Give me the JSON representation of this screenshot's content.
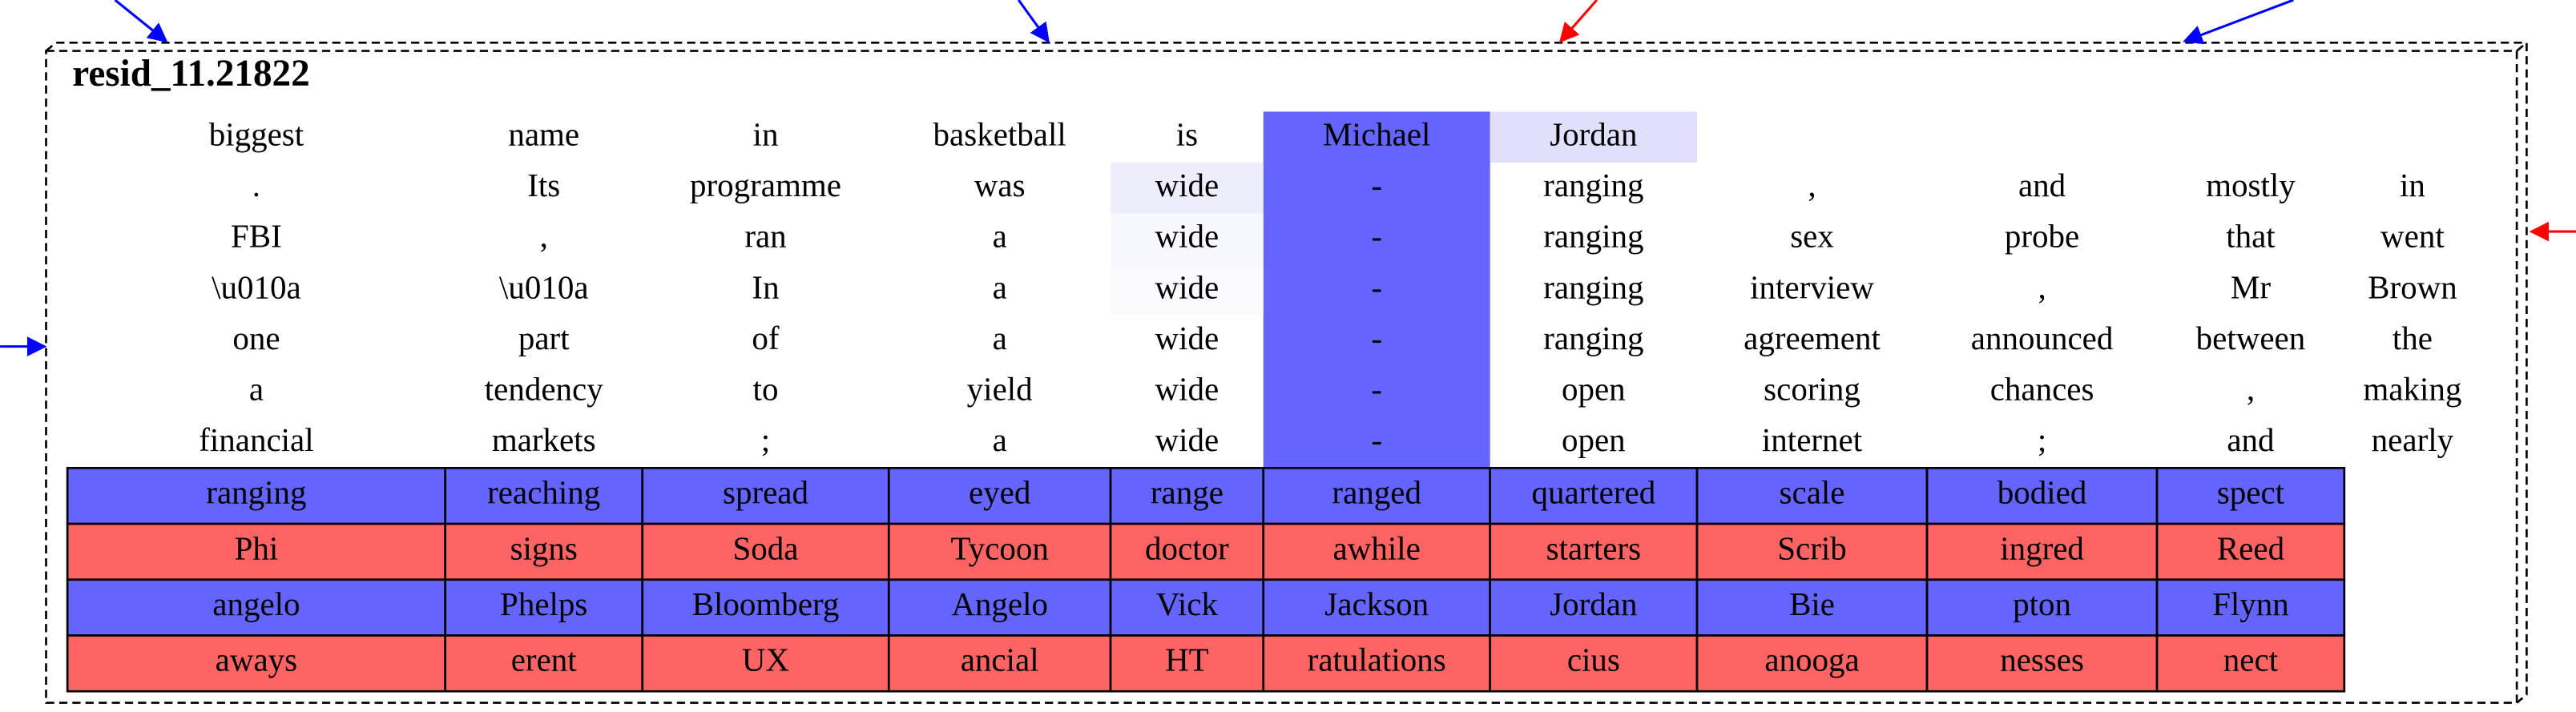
{
  "title": "resid_11.21822",
  "context": [
    [
      "biggest",
      "name",
      "in",
      "basketball",
      "is",
      "Michael",
      "Jordan"
    ],
    [
      ".",
      "Its",
      "programme",
      "was",
      "wide",
      "-",
      "ranging",
      ",",
      "and",
      "mostly",
      "in"
    ],
    [
      "FBI",
      ",",
      "ran",
      "a",
      "wide",
      "-",
      "ranging",
      "sex",
      "probe",
      "that",
      "went"
    ],
    [
      "\\u010a",
      "\\u010a",
      "In",
      "a",
      "wide",
      "-",
      "ranging",
      "interview",
      ",",
      "Mr",
      "Brown"
    ],
    [
      "one",
      "part",
      "of",
      "a",
      "wide",
      "-",
      "ranging",
      "agreement",
      "announced",
      "between",
      "the"
    ],
    [
      "a",
      "tendency",
      "to",
      "yield",
      "wide",
      "-",
      "open",
      "scoring",
      "chances",
      ",",
      "making"
    ],
    [
      "financial",
      "markets",
      ";",
      "a",
      "wide",
      "-",
      "open",
      "internet",
      ";",
      "and",
      "nearly"
    ]
  ],
  "table": {
    "rows": [
      {
        "color": "#6464ff",
        "cells": [
          "ranging",
          "reaching",
          "spread",
          "eyed",
          "range",
          "ranged",
          "quartered",
          "scale",
          "bodied",
          "spect"
        ]
      },
      {
        "color": "#ff6464",
        "cells": [
          "Phi",
          "signs",
          "Soda",
          "Tycoon",
          "doctor",
          "awhile",
          "starters",
          "Scrib",
          "ingred",
          "Reed"
        ]
      },
      {
        "color": "#6464ff",
        "cells": [
          "angelo",
          "Phelps",
          "Bloomberg",
          "Angelo",
          "Vick",
          "Jackson",
          "Jordan",
          "Bie",
          "pton",
          "Flynn"
        ]
      },
      {
        "color": "#ff6464",
        "cells": [
          "aways",
          "erent",
          "UX",
          "ancial",
          "HT",
          "ratulations",
          "cius",
          "anooga",
          "nesses",
          "nect"
        ]
      }
    ]
  }
}
